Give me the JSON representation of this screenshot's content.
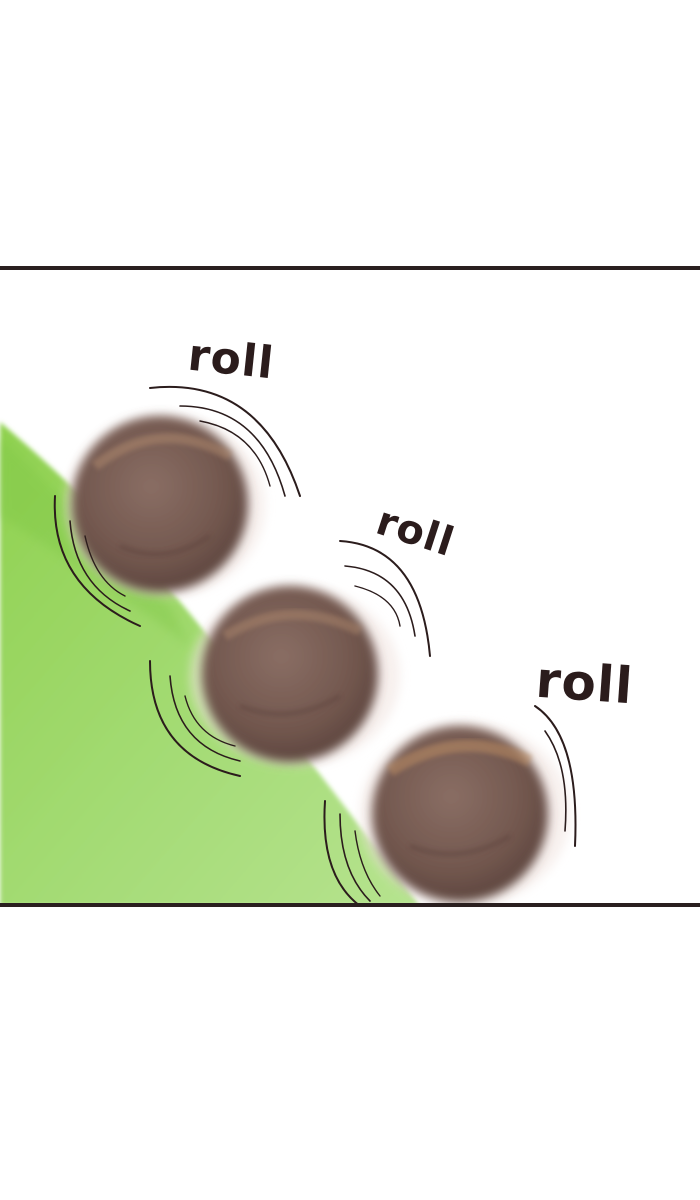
{
  "panel": {
    "sound_effects": [
      "roll",
      "roll",
      "roll"
    ]
  },
  "colors": {
    "border": "#2a1f1f",
    "grass": "#9fd86a",
    "grass_dark": "#7cc442",
    "ball": "#7a5e54",
    "ball_highlight": "#b08a6e",
    "motion_lines": "#2b1c1c"
  },
  "icons": [
    "rolling-ball-icon",
    "grass-slope-icon",
    "motion-lines-icon"
  ]
}
